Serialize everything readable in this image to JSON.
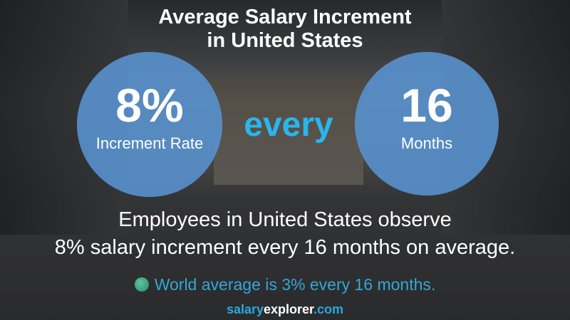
{
  "title_line1": "Average Salary Increment",
  "title_line2": "in United States",
  "left_circle": {
    "value": "8%",
    "label": "Increment Rate"
  },
  "connector": "every",
  "right_circle": {
    "value": "16",
    "label": "Months"
  },
  "description_line1": "Employees in United States observe",
  "description_line2": "8% salary increment every 16 months on average.",
  "world_average": "World average is 3% every 16 months.",
  "brand": {
    "part1": "salary",
    "part2": "explorer",
    "part3": ".com"
  },
  "colors": {
    "circle": "#5891cd",
    "accent": "#29b6ec",
    "world_text": "#35a6d8"
  },
  "icons": {
    "world": "globe-icon"
  }
}
